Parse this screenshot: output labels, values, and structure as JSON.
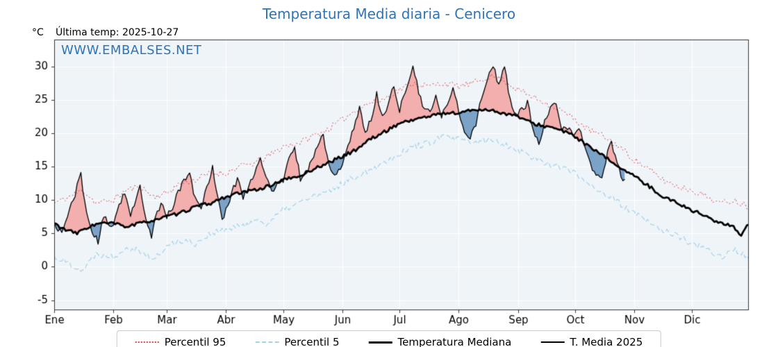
{
  "chart_data": {
    "type": "line",
    "title": "Temperatura Media diaria - Cenicero",
    "title_color": "#2e74b5",
    "ylabel": "°C",
    "annotations": {
      "last_temp": "Última temp: 2025-10-27",
      "watermark": "WWW.EMBALSES.NET",
      "watermark_color": "#2e74b5"
    },
    "ylim": [
      -6.5,
      34
    ],
    "y_ticks": [
      -5,
      0,
      5,
      10,
      15,
      20,
      25,
      30
    ],
    "x_tick_labels": [
      "Ene",
      "Feb",
      "Mar",
      "Abr",
      "May",
      "Jun",
      "Jul",
      "Ago",
      "Sep",
      "Oct",
      "Nov",
      "Dic"
    ],
    "month_start_days": [
      0,
      31,
      59,
      90,
      120,
      151,
      181,
      212,
      243,
      273,
      304,
      334
    ],
    "days_in_year": 365,
    "grid": true,
    "legend_position": "bottom",
    "background": "#eff4f9",
    "grid_color": "#ffffff",
    "frame_color": "#333333",
    "fill_above_color": "#f3aeae",
    "fill_below_color": "#7ba3c8",
    "series": [
      {
        "name": "Percentil 95",
        "color": "#dd4444",
        "dash": "dotted",
        "width": 1,
        "noise": 0.5,
        "seed": 11,
        "points": [
          [
            0,
            9.5
          ],
          [
            8,
            10.5
          ],
          [
            15,
            11.5
          ],
          [
            22,
            9.5
          ],
          [
            31,
            10
          ],
          [
            38,
            11.5
          ],
          [
            45,
            12
          ],
          [
            52,
            10.5
          ],
          [
            59,
            11
          ],
          [
            66,
            12.5
          ],
          [
            74,
            13
          ],
          [
            82,
            14
          ],
          [
            90,
            14
          ],
          [
            97,
            15
          ],
          [
            105,
            15.5
          ],
          [
            112,
            16.5
          ],
          [
            120,
            18
          ],
          [
            128,
            18.5
          ],
          [
            135,
            19.5
          ],
          [
            143,
            20.5
          ],
          [
            151,
            22
          ],
          [
            158,
            23.5
          ],
          [
            165,
            24.5
          ],
          [
            172,
            25
          ],
          [
            181,
            26.5
          ],
          [
            188,
            27.5
          ],
          [
            196,
            27
          ],
          [
            204,
            27.5
          ],
          [
            212,
            27
          ],
          [
            220,
            27.5
          ],
          [
            228,
            28.5
          ],
          [
            235,
            28
          ],
          [
            243,
            26.5
          ],
          [
            250,
            25.5
          ],
          [
            258,
            24.5
          ],
          [
            265,
            23.5
          ],
          [
            273,
            22
          ],
          [
            280,
            20.5
          ],
          [
            288,
            19.5
          ],
          [
            296,
            18
          ],
          [
            304,
            16
          ],
          [
            312,
            14.5
          ],
          [
            319,
            13
          ],
          [
            327,
            12
          ],
          [
            334,
            11.5
          ],
          [
            342,
            10.5
          ],
          [
            349,
            9.5
          ],
          [
            356,
            10
          ],
          [
            364,
            9
          ]
        ]
      },
      {
        "name": "Percentil 5",
        "color": "#a3d3e8",
        "dash": "dashed",
        "width": 1.2,
        "noise": 0.5,
        "seed": 22,
        "points": [
          [
            0,
            1.5
          ],
          [
            8,
            0.5
          ],
          [
            15,
            -0.5
          ],
          [
            22,
            2
          ],
          [
            31,
            1.5
          ],
          [
            38,
            3
          ],
          [
            45,
            2.5
          ],
          [
            52,
            1
          ],
          [
            59,
            3
          ],
          [
            66,
            4
          ],
          [
            74,
            3.5
          ],
          [
            82,
            5
          ],
          [
            90,
            5.5
          ],
          [
            97,
            6
          ],
          [
            105,
            7
          ],
          [
            112,
            6.5
          ],
          [
            120,
            8.5
          ],
          [
            128,
            9.5
          ],
          [
            135,
            10.5
          ],
          [
            143,
            11
          ],
          [
            151,
            12.5
          ],
          [
            158,
            13.5
          ],
          [
            165,
            14.5
          ],
          [
            172,
            15.5
          ],
          [
            181,
            17
          ],
          [
            188,
            18
          ],
          [
            196,
            18.5
          ],
          [
            204,
            19.5
          ],
          [
            212,
            19
          ],
          [
            220,
            18.5
          ],
          [
            228,
            19
          ],
          [
            235,
            18.5
          ],
          [
            243,
            17.5
          ],
          [
            250,
            16.5
          ],
          [
            258,
            15.5
          ],
          [
            265,
            15
          ],
          [
            273,
            14
          ],
          [
            280,
            12.5
          ],
          [
            288,
            11
          ],
          [
            296,
            9.5
          ],
          [
            304,
            8
          ],
          [
            312,
            6.5
          ],
          [
            319,
            5.5
          ],
          [
            327,
            4.5
          ],
          [
            334,
            3.5
          ],
          [
            342,
            2.5
          ],
          [
            349,
            1.5
          ],
          [
            356,
            2.5
          ],
          [
            364,
            1.5
          ]
        ]
      },
      {
        "name": "Temperatura Mediana",
        "color": "#000000",
        "dash": "solid",
        "width": 2.8,
        "noise": 0.25,
        "seed": 33,
        "points": [
          [
            0,
            6.5
          ],
          [
            6,
            5.5
          ],
          [
            12,
            5
          ],
          [
            18,
            6
          ],
          [
            24,
            6.5
          ],
          [
            31,
            6.5
          ],
          [
            38,
            6
          ],
          [
            45,
            6.5
          ],
          [
            52,
            7
          ],
          [
            59,
            7.5
          ],
          [
            66,
            8
          ],
          [
            74,
            9
          ],
          [
            82,
            9.5
          ],
          [
            90,
            10.5
          ],
          [
            97,
            11
          ],
          [
            105,
            11.5
          ],
          [
            112,
            12
          ],
          [
            120,
            13
          ],
          [
            128,
            13.5
          ],
          [
            135,
            14.5
          ],
          [
            143,
            15.5
          ],
          [
            151,
            16.5
          ],
          [
            158,
            17.5
          ],
          [
            165,
            19
          ],
          [
            172,
            20
          ],
          [
            181,
            21.5
          ],
          [
            188,
            22
          ],
          [
            196,
            22.5
          ],
          [
            204,
            23
          ],
          [
            212,
            23
          ],
          [
            220,
            23.5
          ],
          [
            228,
            23.5
          ],
          [
            235,
            23
          ],
          [
            243,
            22.5
          ],
          [
            250,
            21.5
          ],
          [
            258,
            21
          ],
          [
            265,
            20.5
          ],
          [
            273,
            19.5
          ],
          [
            280,
            18
          ],
          [
            288,
            16.5
          ],
          [
            296,
            15
          ],
          [
            304,
            13.5
          ],
          [
            312,
            12
          ],
          [
            319,
            10.5
          ],
          [
            327,
            9.5
          ],
          [
            334,
            8.5
          ],
          [
            342,
            7.5
          ],
          [
            349,
            6.5
          ],
          [
            356,
            6
          ],
          [
            360,
            4.8
          ],
          [
            364,
            6.5
          ]
        ]
      },
      {
        "name": "T. Media 2025",
        "color": "#000000",
        "dash": "solid",
        "width": 1.3,
        "noise": 0.5,
        "seed": 44,
        "end_day": 299,
        "points": [
          [
            0,
            6.5
          ],
          [
            4,
            5
          ],
          [
            8,
            8.5
          ],
          [
            11,
            11
          ],
          [
            14,
            13.8
          ],
          [
            17,
            8
          ],
          [
            20,
            5
          ],
          [
            23,
            3.8
          ],
          [
            26,
            7.5
          ],
          [
            29,
            6
          ],
          [
            31,
            6.5
          ],
          [
            34,
            9.5
          ],
          [
            37,
            11
          ],
          [
            40,
            8
          ],
          [
            43,
            10
          ],
          [
            45,
            11.8
          ],
          [
            48,
            7
          ],
          [
            51,
            4.5
          ],
          [
            54,
            8.5
          ],
          [
            57,
            9.5
          ],
          [
            59,
            7.5
          ],
          [
            62,
            9
          ],
          [
            65,
            11
          ],
          [
            68,
            13
          ],
          [
            71,
            13.8
          ],
          [
            74,
            10
          ],
          [
            77,
            9
          ],
          [
            80,
            12
          ],
          [
            83,
            14.8
          ],
          [
            86,
            10
          ],
          [
            88,
            6.8
          ],
          [
            90,
            8.5
          ],
          [
            93,
            11
          ],
          [
            96,
            13.2
          ],
          [
            99,
            10.5
          ],
          [
            102,
            12
          ],
          [
            105,
            14.2
          ],
          [
            108,
            16.5
          ],
          [
            111,
            13.5
          ],
          [
            114,
            11
          ],
          [
            117,
            12.5
          ],
          [
            120,
            13
          ],
          [
            123,
            16
          ],
          [
            126,
            17.8
          ],
          [
            129,
            13.2
          ],
          [
            132,
            14
          ],
          [
            135,
            16
          ],
          [
            138,
            18
          ],
          [
            141,
            19.8
          ],
          [
            144,
            15
          ],
          [
            147,
            13.5
          ],
          [
            151,
            15
          ],
          [
            154,
            18
          ],
          [
            157,
            21
          ],
          [
            160,
            23.8
          ],
          [
            163,
            20
          ],
          [
            166,
            22
          ],
          [
            169,
            25.8
          ],
          [
            172,
            22.5
          ],
          [
            175,
            24
          ],
          [
            178,
            27.3
          ],
          [
            181,
            23.5
          ],
          [
            184,
            26
          ],
          [
            188,
            30.2
          ],
          [
            191,
            26
          ],
          [
            194,
            23.5
          ],
          [
            197,
            23
          ],
          [
            200,
            25.5
          ],
          [
            203,
            22.3
          ],
          [
            206,
            24.5
          ],
          [
            209,
            26.5
          ],
          [
            212,
            23.5
          ],
          [
            215,
            20
          ],
          [
            218,
            19.5
          ],
          [
            221,
            21.5
          ],
          [
            224,
            25.5
          ],
          [
            227,
            28
          ],
          [
            230,
            30.3
          ],
          [
            233,
            27
          ],
          [
            236,
            29.8
          ],
          [
            239,
            25
          ],
          [
            242,
            22.5
          ],
          [
            245,
            23.5
          ],
          [
            248,
            24.5
          ],
          [
            251,
            20.5
          ],
          [
            254,
            18.3
          ],
          [
            257,
            21.5
          ],
          [
            260,
            23.5
          ],
          [
            263,
            24.3
          ],
          [
            266,
            20.5
          ],
          [
            269,
            21
          ],
          [
            272,
            19.5
          ],
          [
            275,
            20.8
          ],
          [
            278,
            18
          ],
          [
            281,
            15.5
          ],
          [
            284,
            13.2
          ],
          [
            287,
            13.8
          ],
          [
            290,
            17
          ],
          [
            292,
            18.8
          ],
          [
            295,
            15.5
          ],
          [
            297,
            13.5
          ],
          [
            300,
            12.5
          ]
        ]
      }
    ]
  }
}
